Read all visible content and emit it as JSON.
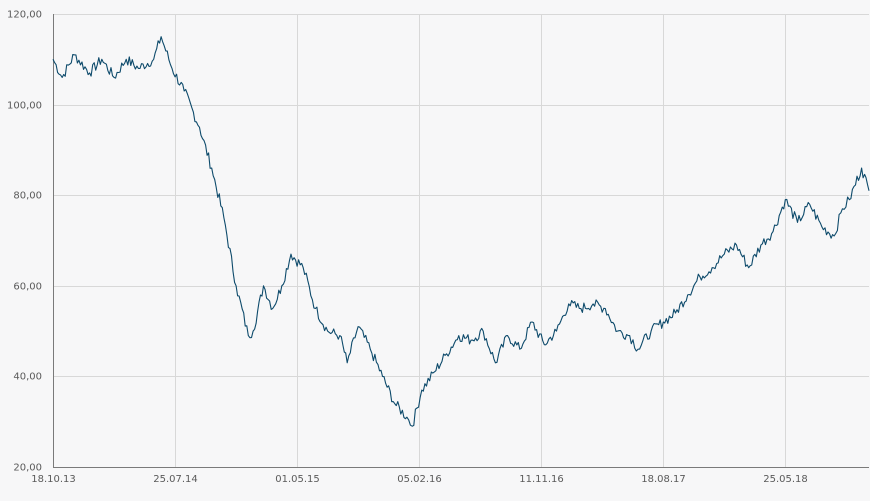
{
  "chart_data": {
    "type": "line",
    "title": "",
    "xlabel": "",
    "ylabel": "",
    "ylim": [
      20,
      120
    ],
    "y_ticks": [
      "120,00",
      "100,00",
      "80,00",
      "60,00",
      "40,00",
      "20,00"
    ],
    "y_tick_values": [
      120,
      100,
      80,
      60,
      40,
      20
    ],
    "x_ticks": [
      "18.10.13",
      "25.07.14",
      "01.05.15",
      "05.02.16",
      "11.11.16",
      "18.08.17",
      "25.05.18"
    ],
    "x_tick_dates": [
      "2013-10-18",
      "2014-07-25",
      "2015-05-01",
      "2016-02-05",
      "2016-11-11",
      "2017-08-18",
      "2018-05-25"
    ],
    "xlim": [
      "2013-10-18",
      "2018-12-03"
    ],
    "grid": true,
    "legend": "none",
    "series": [
      {
        "color": "#0d4a6b",
        "x": [
          "2013-10-18",
          "2013-11-08",
          "2013-12-06",
          "2014-01-10",
          "2014-02-07",
          "2014-03-07",
          "2014-04-04",
          "2014-05-02",
          "2014-06-06",
          "2014-06-23",
          "2014-07-18",
          "2014-08-15",
          "2014-09-19",
          "2014-10-17",
          "2014-11-14",
          "2014-12-12",
          "2015-01-09",
          "2015-01-20",
          "2015-02-13",
          "2015-03-06",
          "2015-03-27",
          "2015-04-17",
          "2015-05-15",
          "2015-06-12",
          "2015-07-10",
          "2015-08-07",
          "2015-08-24",
          "2015-09-18",
          "2015-10-16",
          "2015-11-13",
          "2015-12-11",
          "2016-01-08",
          "2016-01-20",
          "2016-02-11",
          "2016-03-11",
          "2016-04-08",
          "2016-05-06",
          "2016-06-03",
          "2016-07-01",
          "2016-07-29",
          "2016-08-26",
          "2016-09-23",
          "2016-10-21",
          "2016-11-18",
          "2016-12-16",
          "2017-01-13",
          "2017-02-10",
          "2017-03-10",
          "2017-04-07",
          "2017-05-05",
          "2017-06-02",
          "2017-06-21",
          "2017-07-21",
          "2017-08-18",
          "2017-09-15",
          "2017-10-13",
          "2017-11-10",
          "2017-12-08",
          "2018-01-05",
          "2018-02-02",
          "2018-03-02",
          "2018-03-30",
          "2018-04-27",
          "2018-05-25",
          "2018-06-22",
          "2018-07-20",
          "2018-08-17",
          "2018-09-14",
          "2018-10-03",
          "2018-10-19",
          "2018-11-16",
          "2018-12-03"
        ],
        "y": [
          110,
          106,
          111,
          107,
          110,
          106,
          110,
          108,
          110,
          115,
          108,
          103,
          95,
          86,
          75,
          60,
          49,
          50,
          60,
          55,
          60,
          67,
          64,
          55,
          50,
          49,
          43,
          51,
          46,
          40,
          34,
          31,
          29,
          37,
          41,
          45,
          49,
          48,
          50,
          43,
          49,
          46,
          52,
          47,
          50,
          56,
          55,
          56,
          55,
          50,
          49,
          46,
          50,
          52,
          54,
          58,
          62,
          64,
          67,
          69,
          64,
          69,
          72,
          79,
          74,
          78,
          73,
          71,
          77,
          79,
          86,
          81
        ]
      }
    ]
  }
}
